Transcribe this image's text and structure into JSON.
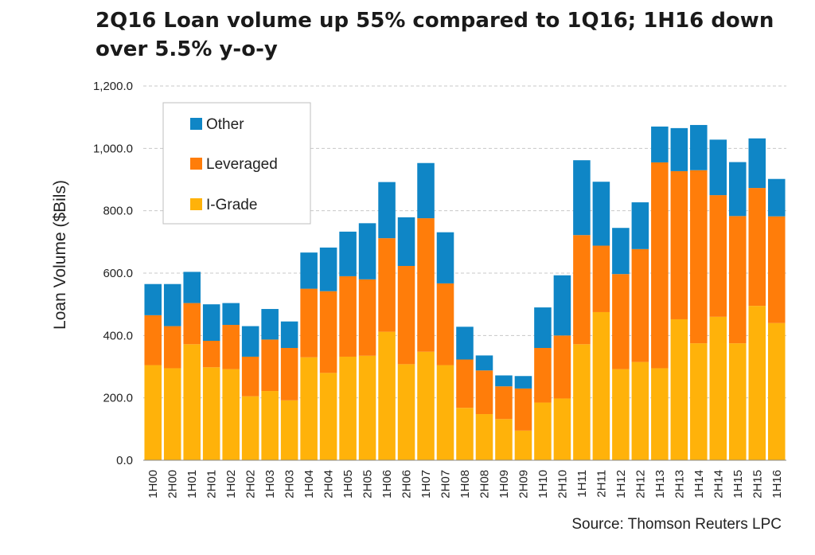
{
  "title": "2Q16 Loan volume up 55% compared to 1Q16; 1H16 down over 5.5% y-o-y",
  "source": "Source: Thomson Reuters LPC",
  "colors": {
    "Other": "#0f86c6",
    "Leveraged": "#ff7d0a",
    "I-Grade": "#ffb20a",
    "grid": "#c8c8c8"
  },
  "chart_data": {
    "type": "bar",
    "stacked": true,
    "title": "2Q16 Loan volume up 55% compared to 1Q16; 1H16 down over 5.5% y-o-y",
    "ylabel": "Loan Volume ($Bils)",
    "xlabel": "",
    "ylim": [
      0,
      1200
    ],
    "yticks": [
      "0.0",
      "200.0",
      "400.0",
      "600.0",
      "800.0",
      "1,000.0",
      "1,200.0"
    ],
    "grid": true,
    "legend_position": "top-left",
    "legend_order": [
      "Other",
      "Leveraged",
      "I-Grade"
    ],
    "categories": [
      "1H00",
      "2H00",
      "1H01",
      "2H01",
      "1H02",
      "2H02",
      "1H03",
      "2H03",
      "1H04",
      "2H04",
      "1H05",
      "2H05",
      "1H06",
      "2H06",
      "1H07",
      "2H07",
      "1H08",
      "2H08",
      "1H09",
      "2H09",
      "1H10",
      "2H10",
      "1H11",
      "2H11",
      "1H12",
      "2H12",
      "1H13",
      "2H13",
      "1H14",
      "2H14",
      "1H15",
      "2H15",
      "1H16"
    ],
    "series": [
      {
        "name": "I-Grade",
        "values": [
          305,
          295,
          372,
          298,
          292,
          205,
          222,
          192,
          330,
          280,
          332,
          335,
          412,
          308,
          348,
          305,
          168,
          148,
          132,
          95,
          185,
          198,
          372,
          475,
          292,
          315,
          295,
          452,
          375,
          460,
          375,
          495,
          440
        ]
      },
      {
        "name": "Leveraged",
        "values": [
          160,
          135,
          132,
          85,
          142,
          127,
          165,
          168,
          220,
          262,
          258,
          245,
          300,
          315,
          428,
          262,
          155,
          140,
          105,
          135,
          175,
          202,
          350,
          213,
          305,
          362,
          660,
          475,
          555,
          390,
          408,
          378,
          342
        ]
      },
      {
        "name": "Other",
        "values": [
          100,
          135,
          100,
          117,
          70,
          98,
          98,
          85,
          116,
          140,
          143,
          180,
          180,
          156,
          177,
          164,
          105,
          48,
          35,
          40,
          130,
          193,
          240,
          205,
          148,
          150,
          115,
          138,
          145,
          178,
          173,
          159,
          120
        ]
      }
    ]
  }
}
